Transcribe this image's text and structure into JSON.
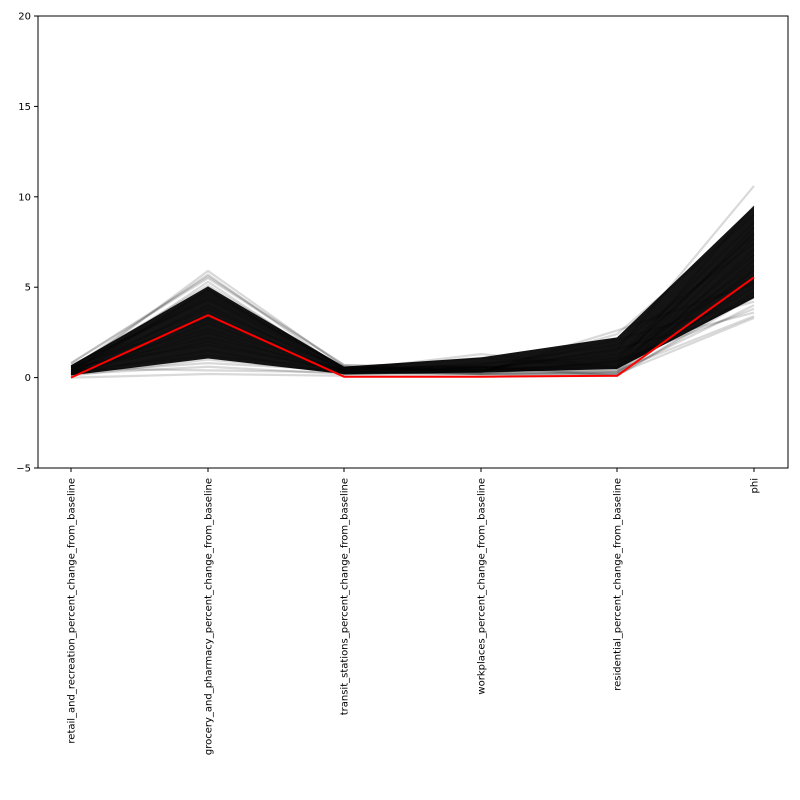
{
  "chart_data": {
    "type": "line",
    "subtype": "parallel-coordinates",
    "categories": [
      "retail_and_recreation_percent_change_from_baseline",
      "grocery_and_pharmacy_percent_change_from_baseline",
      "transit_stations_percent_change_from_baseline",
      "workplaces_percent_change_from_baseline",
      "residential_percent_change_from_baseline",
      "phi"
    ],
    "ylim": [
      -5,
      20
    ],
    "yticks": [
      -5,
      0,
      5,
      10,
      15,
      20
    ],
    "grid": false,
    "highlight_series": {
      "color": "#ff0000",
      "values": [
        0.0,
        3.45,
        0.05,
        0.05,
        0.1,
        5.55
      ]
    },
    "background_series": {
      "color": "#000000",
      "values": [
        [
          0.3,
          5.9,
          0.6,
          0.5,
          1.5,
          10.6
        ],
        [
          0.5,
          5.7,
          0.4,
          1.3,
          0.6,
          9.5
        ],
        [
          0.8,
          5.5,
          0.7,
          0.3,
          2.4,
          9.0
        ],
        [
          0.2,
          5.3,
          0.3,
          0.8,
          1.1,
          8.6
        ],
        [
          0.6,
          5.1,
          0.5,
          0.6,
          0.4,
          8.3
        ],
        [
          0.1,
          4.9,
          0.2,
          0.4,
          0.9,
          8.0
        ],
        [
          0.4,
          4.6,
          0.6,
          0.2,
          0.3,
          7.7
        ],
        [
          0.7,
          4.3,
          0.4,
          0.7,
          1.8,
          7.4
        ],
        [
          0.2,
          4.0,
          0.3,
          0.5,
          0.2,
          7.1
        ],
        [
          0.5,
          3.8,
          0.5,
          0.3,
          0.6,
          6.8
        ],
        [
          0.3,
          3.5,
          0.2,
          0.6,
          0.1,
          6.5
        ],
        [
          0.6,
          3.2,
          0.6,
          0.4,
          0.8,
          6.2
        ],
        [
          0.1,
          3.0,
          0.3,
          0.2,
          0.3,
          5.9
        ],
        [
          0.4,
          2.7,
          0.4,
          0.5,
          1.3,
          5.6
        ],
        [
          0.2,
          2.5,
          0.2,
          0.3,
          0.2,
          5.3
        ],
        [
          0.5,
          2.2,
          0.5,
          0.6,
          0.5,
          5.0
        ],
        [
          0.3,
          2.0,
          0.3,
          0.2,
          0.1,
          4.7
        ],
        [
          0.6,
          1.8,
          0.4,
          0.4,
          0.7,
          4.4
        ],
        [
          0.2,
          1.5,
          0.2,
          0.3,
          2.1,
          4.2
        ],
        [
          0.4,
          1.2,
          0.5,
          0.5,
          0.3,
          4.0
        ],
        [
          0.1,
          1.0,
          0.3,
          0.2,
          0.9,
          3.8
        ],
        [
          0.3,
          0.8,
          0.4,
          0.4,
          1.6,
          3.6
        ],
        [
          0.2,
          0.6,
          0.2,
          0.3,
          0.4,
          3.4
        ],
        [
          0.5,
          0.4,
          0.3,
          0.2,
          0.2,
          3.3
        ],
        [
          0.0,
          0.2,
          0.1,
          0.1,
          0.1,
          4.5
        ],
        [
          0.8,
          5.6,
          0.7,
          0.6,
          1.0,
          7.9
        ],
        [
          0.4,
          4.8,
          0.5,
          1.1,
          0.5,
          6.0
        ],
        [
          0.6,
          4.4,
          0.6,
          0.3,
          2.6,
          5.2
        ]
      ]
    }
  }
}
